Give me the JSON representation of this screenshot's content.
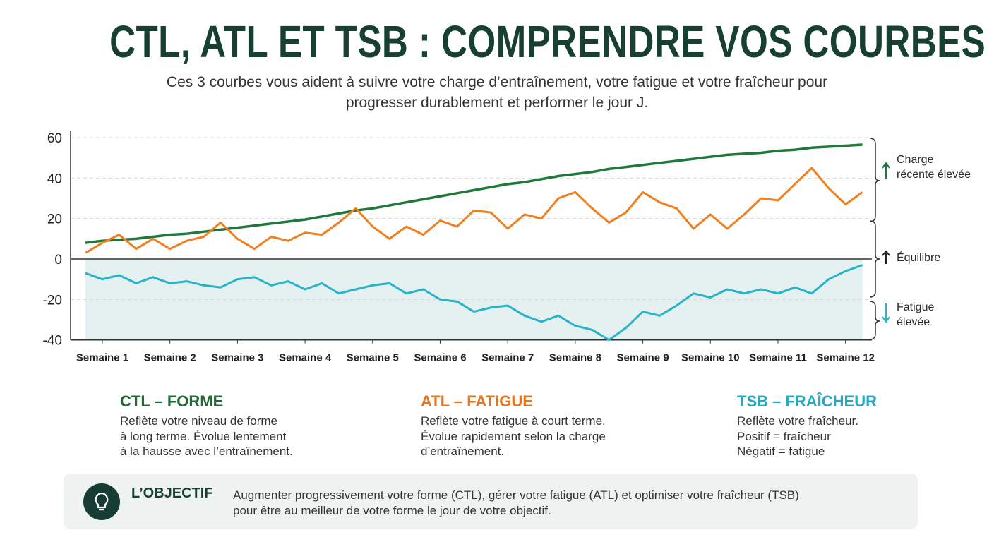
{
  "chart_data": {
    "type": "line",
    "title": "CTL, ATL ET TSB : COMPRENDRE VOS COURBES",
    "subtitle": "Ces 3 courbes vous aident à suivre votre charge d’entraînement, votre fatigue et votre fraîcheur pour progresser durablement et performer le jour J.",
    "x": [
      0.75,
      1,
      1.25,
      1.5,
      1.75,
      2,
      2.25,
      2.5,
      2.75,
      3,
      3.25,
      3.5,
      3.75,
      4,
      4.25,
      4.5,
      4.75,
      5,
      5.25,
      5.5,
      5.75,
      6,
      6.25,
      6.5,
      6.75,
      7,
      7.25,
      7.5,
      7.75,
      8,
      8.25,
      8.5,
      8.75,
      9,
      9.25,
      9.5,
      9.75,
      10,
      10.25,
      10.5,
      10.75,
      11,
      11.25,
      11.5,
      11.75,
      12,
      12.25
    ],
    "xlim": [
      0.53,
      12.39
    ],
    "xticks": [
      {
        "value": 1,
        "label": "Semaine 1"
      },
      {
        "value": 2,
        "label": "Semaine 2"
      },
      {
        "value": 3,
        "label": "Semaine 3"
      },
      {
        "value": 4,
        "label": "Semaine 4"
      },
      {
        "value": 5,
        "label": "Semaine 5"
      },
      {
        "value": 6,
        "label": "Semaine 6"
      },
      {
        "value": 7,
        "label": "Semaine 7"
      },
      {
        "value": 8,
        "label": "Semaine 8"
      },
      {
        "value": 9,
        "label": "Semaine 9"
      },
      {
        "value": 10,
        "label": "Semaine 10"
      },
      {
        "value": 11,
        "label": "Semaine 11"
      },
      {
        "value": 12,
        "label": "Semaine 12"
      }
    ],
    "ylim": [
      -40,
      60
    ],
    "yticks": [
      -40,
      -20,
      0,
      20,
      40,
      60
    ],
    "grid": true,
    "series": [
      {
        "name": "CTL – FORME",
        "color": "#1f7a3a",
        "values": [
          8,
          9,
          9.5,
          10,
          11,
          12,
          12.5,
          13.5,
          14.5,
          15.5,
          16.5,
          17.5,
          18.5,
          19.5,
          21,
          22.5,
          24,
          25,
          26.5,
          28,
          29.5,
          31,
          32.5,
          34,
          35.5,
          37,
          38,
          39.5,
          41,
          42,
          43,
          44.5,
          45.5,
          46.5,
          47.5,
          48.5,
          49.5,
          50.5,
          51.5,
          52,
          52.5,
          53.5,
          54,
          55,
          55.5,
          56,
          56.5
        ]
      },
      {
        "name": "ATL – FATIGUE",
        "color": "#f07f1e",
        "values": [
          3,
          8,
          12,
          5,
          10,
          5,
          9,
          11,
          18,
          10,
          5,
          11,
          9,
          13,
          12,
          18,
          25,
          16,
          10,
          16,
          12,
          19,
          16,
          24,
          23,
          15,
          22,
          20,
          30,
          33,
          25,
          18,
          23,
          33,
          28,
          25,
          15,
          22,
          15,
          22,
          30,
          29,
          37,
          45,
          35,
          27,
          33
        ]
      },
      {
        "name": "TSB – FRAÎCHEUR",
        "color": "#29b3c9",
        "values": [
          -7,
          -10,
          -8,
          -12,
          -9,
          -12,
          -11,
          -13,
          -14,
          -10,
          -9,
          -13,
          -11,
          -15,
          -12,
          -17,
          -15,
          -13,
          -12,
          -17,
          -15,
          -20,
          -21,
          -26,
          -24,
          -23,
          -28,
          -31,
          -28,
          -33,
          -35,
          -40,
          -34,
          -26,
          -28,
          -23,
          -17,
          -19,
          -15,
          -17,
          -15,
          -17,
          -14,
          -17,
          -10,
          -6,
          -3
        ]
      }
    ],
    "annotations": [
      [
        "Charge",
        "récente élevée"
      ],
      [
        "Équilibre"
      ],
      [
        "Fatigue",
        "élevée"
      ]
    ]
  },
  "cards": [
    {
      "lines": [
        "Reflète votre niveau de forme",
        "à long terme. Évolue lentement",
        "à la hausse avec l’entraînement."
      ]
    },
    {
      "lines": [
        "Reflète votre fatigue à court terme.",
        "Évolue rapidement selon la charge",
        "d’entraînement."
      ]
    },
    {
      "lines": [
        "Reflète votre fraîcheur.",
        "Positif = fraîcheur",
        "Négatif = fatigue"
      ]
    }
  ],
  "objective": {
    "title": "L’OBJECTIF",
    "lines": [
      "Augmenter progressivement votre forme (CTL), gérer votre fatigue (ATL) et optimiser votre fraîcheur (TSB)",
      "pour être au meilleur de votre forme le jour de votre objectif."
    ]
  }
}
